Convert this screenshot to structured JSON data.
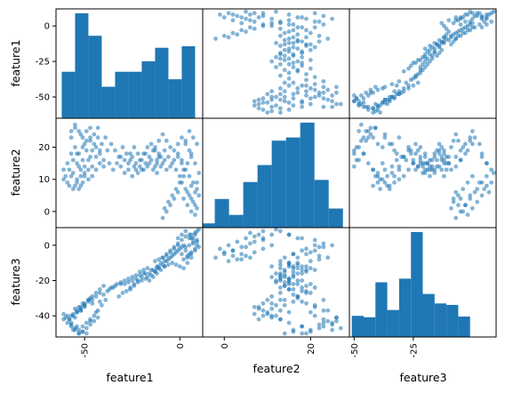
{
  "chart_data": {
    "type": "scatter_matrix",
    "features": [
      "feature1",
      "feature2",
      "feature3"
    ],
    "colors": {
      "points": "#1f77b4",
      "bars": "#1f77b4",
      "frame": "#000000"
    },
    "ranges": {
      "feature1": [
        -65,
        12
      ],
      "feature2": [
        -5,
        29
      ],
      "feature3": [
        -52,
        10
      ]
    },
    "ticks": {
      "feature1": {
        "values": [
          -50,
          0
        ],
        "labels": [
          "-50",
          "0"
        ]
      },
      "feature2": {
        "values": [
          0,
          20
        ],
        "labels": [
          "0",
          "20"
        ]
      },
      "feature3": {
        "values": [
          -50,
          -25
        ],
        "labels": [
          "-50",
          "-25"
        ]
      }
    },
    "row_ticks": {
      "feature1": {
        "values": [
          0,
          -25,
          -50
        ],
        "labels": [
          "0",
          "-25",
          "-50"
        ]
      },
      "feature2": {
        "values": [
          20,
          10,
          0
        ],
        "labels": [
          "20",
          "10",
          "0"
        ]
      },
      "feature3": {
        "values": [
          0,
          -20,
          -40
        ],
        "labels": [
          "0",
          "-20",
          "-40"
        ]
      }
    },
    "histograms": {
      "feature1": {
        "bins": [
          -62,
          -55,
          -48,
          -41,
          -34,
          -27,
          -20,
          -13,
          -6,
          1,
          8
        ],
        "counts": [
          31,
          70,
          55,
          21,
          31,
          31,
          38,
          47,
          26,
          48
        ]
      },
      "feature2": {
        "bins": [
          -5.5,
          -2.2,
          1.1,
          4.4,
          7.7,
          11,
          14.3,
          17.6,
          20.9,
          24.2,
          27.5
        ],
        "counts": [
          4,
          27,
          12,
          43,
          59,
          82,
          85,
          99,
          45,
          18
        ]
      },
      "feature3": {
        "bins": [
          -51,
          -46,
          -41,
          -36,
          -31,
          -26,
          -21,
          -16,
          -11,
          -6,
          -1
        ],
        "counts": [
          29,
          27,
          75,
          37,
          80,
          144,
          59,
          46,
          44,
          28
        ]
      }
    },
    "samples": [
      [
        -61,
        10,
        -39
      ],
      [
        -59,
        9,
        -40
      ],
      [
        -57,
        11,
        -40
      ],
      [
        -55,
        8,
        -36
      ],
      [
        -53,
        7,
        -35
      ],
      [
        -51,
        9,
        -33
      ],
      [
        -52,
        13,
        -37
      ],
      [
        -54,
        15,
        -38
      ],
      [
        -50,
        12,
        -34
      ],
      [
        -48,
        10,
        -31
      ],
      [
        -47,
        17,
        -30
      ],
      [
        -46,
        19,
        -33
      ],
      [
        -50,
        21,
        -35
      ],
      [
        -52,
        24,
        -37
      ],
      [
        -55,
        26,
        -41
      ],
      [
        -57,
        23,
        -44
      ],
      [
        -54,
        18,
        -46
      ],
      [
        -56,
        16,
        -48
      ],
      [
        -53,
        14,
        -50
      ],
      [
        -51,
        16,
        -49
      ],
      [
        -49,
        19,
        -50
      ],
      [
        -47,
        22,
        -45
      ],
      [
        -44,
        20,
        -38
      ],
      [
        -42,
        18,
        -32
      ],
      [
        -40,
        16,
        -28
      ],
      [
        -38,
        19,
        -26
      ],
      [
        -36,
        21,
        -24
      ],
      [
        -34,
        19,
        -23
      ],
      [
        -31,
        17,
        -22
      ],
      [
        -29,
        16,
        -22
      ],
      [
        -27,
        15,
        -21
      ],
      [
        -25,
        17,
        -20
      ],
      [
        -23,
        15,
        -19
      ],
      [
        -21,
        14,
        -17
      ],
      [
        -19,
        13,
        -16
      ],
      [
        -17,
        14,
        -18
      ],
      [
        -15,
        16,
        -17
      ],
      [
        -13,
        14,
        -15
      ],
      [
        -12,
        16,
        -13
      ],
      [
        -11,
        18,
        -12
      ],
      [
        -14,
        19,
        -14
      ],
      [
        -16,
        17,
        -16
      ],
      [
        -18,
        15,
        -19
      ],
      [
        -20,
        13,
        -20
      ],
      [
        -22,
        12,
        -21
      ],
      [
        -24,
        14,
        -23
      ],
      [
        -26,
        16,
        -25
      ],
      [
        -28,
        18,
        -26
      ],
      [
        -30,
        20,
        -27
      ],
      [
        -32,
        17,
        -29
      ],
      [
        -8,
        19,
        -12
      ],
      [
        -6,
        17,
        -11
      ],
      [
        -4,
        15,
        -10
      ],
      [
        -2,
        13,
        -11
      ],
      [
        0,
        11,
        -12
      ],
      [
        2,
        13,
        -13
      ],
      [
        4,
        15,
        -10
      ],
      [
        6,
        17,
        -7
      ],
      [
        5,
        19,
        -5
      ],
      [
        3,
        21,
        -3
      ],
      [
        1,
        23,
        -1
      ],
      [
        -1,
        21,
        0
      ],
      [
        -3,
        19,
        -2
      ],
      [
        -5,
        20,
        -4
      ],
      [
        -7,
        22,
        -6
      ],
      [
        -9,
        24,
        -7
      ],
      [
        -11,
        22,
        -8
      ],
      [
        -13,
        20,
        -9
      ],
      [
        -10,
        17,
        -10
      ],
      [
        -12,
        15,
        -12
      ],
      [
        2,
        4,
        -8
      ],
      [
        4,
        2,
        -6
      ],
      [
        6,
        0,
        -4
      ],
      [
        8,
        -1,
        -2
      ],
      [
        9,
        1,
        0
      ],
      [
        7,
        3,
        2
      ],
      [
        5,
        5,
        4
      ],
      [
        3,
        7,
        5
      ],
      [
        1,
        9,
        3
      ],
      [
        -1,
        6,
        1
      ],
      [
        -3,
        4,
        -1
      ],
      [
        -5,
        2,
        -3
      ],
      [
        -7,
        0,
        -5
      ],
      [
        -9,
        -2,
        -7
      ],
      [
        -8,
        1,
        -9
      ],
      [
        -6,
        3,
        -8
      ],
      [
        -4,
        5,
        -6
      ],
      [
        -2,
        7,
        -4
      ],
      [
        0,
        9,
        -2
      ],
      [
        2,
        11,
        0
      ],
      [
        6,
        8,
        6
      ],
      [
        8,
        6,
        7
      ],
      [
        9,
        9,
        8
      ],
      [
        10,
        12,
        9
      ],
      [
        8,
        15,
        6
      ],
      [
        6,
        18,
        4
      ],
      [
        9,
        21,
        3
      ],
      [
        7,
        23,
        1
      ],
      [
        5,
        25,
        0
      ],
      [
        3,
        22,
        -1
      ],
      [
        -60,
        11,
        -41
      ],
      [
        -58,
        13,
        -42
      ],
      [
        -56,
        12,
        -40
      ],
      [
        -54,
        10,
        -38
      ],
      [
        -52,
        11,
        -36
      ],
      [
        -50,
        14,
        -34
      ],
      [
        -48,
        16,
        -32
      ],
      [
        -46,
        14,
        -31
      ],
      [
        -44,
        17,
        -29
      ],
      [
        -42,
        19,
        -27
      ],
      [
        -57,
        25,
        -45
      ],
      [
        -55,
        27,
        -47
      ],
      [
        -53,
        25,
        -48
      ],
      [
        -51,
        23,
        -46
      ],
      [
        -49,
        25,
        -44
      ],
      [
        -47,
        23,
        -42
      ],
      [
        -45,
        21,
        -40
      ],
      [
        -43,
        23,
        -37
      ],
      [
        -41,
        21,
        -34
      ],
      [
        -39,
        23,
        -31
      ],
      [
        -37,
        15,
        -25
      ],
      [
        -35,
        13,
        -24
      ],
      [
        -33,
        15,
        -22
      ],
      [
        -31,
        14,
        -21
      ],
      [
        -29,
        12,
        -20
      ],
      [
        -27,
        13,
        -19
      ],
      [
        -25,
        11,
        -18
      ],
      [
        -23,
        13,
        -17
      ],
      [
        -21,
        16,
        -15
      ],
      [
        -19,
        18,
        -14
      ],
      [
        -17,
        20,
        -13
      ],
      [
        -15,
        21,
        -14
      ],
      [
        -13,
        19,
        -15
      ],
      [
        -11,
        17,
        -13
      ],
      [
        -9,
        15,
        -11
      ],
      [
        -7,
        13,
        -9
      ],
      [
        -5,
        14,
        -7
      ],
      [
        -3,
        16,
        -5
      ],
      [
        -1,
        18,
        -3
      ],
      [
        1,
        16,
        -5
      ],
      [
        -58,
        8,
        -42
      ],
      [
        -56,
        7,
        -39
      ],
      [
        -54,
        9,
        -37
      ],
      [
        -52,
        8,
        -35
      ],
      [
        -50,
        11,
        -33
      ],
      [
        -48,
        13,
        -31
      ],
      [
        -46,
        11,
        -29
      ],
      [
        -44,
        13,
        -27
      ],
      [
        -42,
        15,
        -25
      ],
      [
        -40,
        14,
        -23
      ],
      [
        -26,
        18,
        -24
      ],
      [
        -24,
        20,
        -22
      ],
      [
        -22,
        18,
        -20
      ],
      [
        -20,
        16,
        -18
      ],
      [
        -18,
        18,
        -16
      ],
      [
        -16,
        15,
        -20
      ],
      [
        -14,
        13,
        -18
      ],
      [
        -12,
        12,
        -16
      ],
      [
        -10,
        14,
        -14
      ],
      [
        -8,
        16,
        -12
      ],
      [
        4,
        6,
        -7
      ],
      [
        6,
        4,
        -5
      ],
      [
        8,
        2,
        -3
      ],
      [
        10,
        5,
        -1
      ],
      [
        9,
        7,
        2
      ],
      [
        7,
        9,
        4
      ],
      [
        5,
        11,
        6
      ],
      [
        3,
        13,
        8
      ],
      [
        1,
        15,
        6
      ],
      [
        -1,
        17,
        4
      ],
      [
        -45,
        24,
        -43
      ],
      [
        -43,
        26,
        -41
      ],
      [
        -47,
        26,
        -43
      ],
      [
        -49,
        22,
        -47
      ],
      [
        -51,
        20,
        -49
      ],
      [
        -53,
        18,
        -50
      ],
      [
        -55,
        20,
        -48
      ],
      [
        -57,
        18,
        -46
      ],
      [
        -59,
        15,
        -44
      ],
      [
        -61,
        13,
        -42
      ]
    ]
  }
}
